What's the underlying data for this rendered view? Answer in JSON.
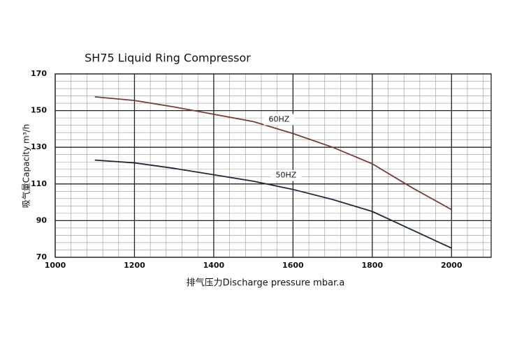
{
  "chart_data": {
    "type": "line",
    "title": "SH75 Liquid Ring Compressor",
    "xlabel": "排气压力Discharge pressure mbar.a",
    "ylabel": "吸气量Capacity m³/h",
    "x": [
      1100,
      1200,
      1300,
      1400,
      1500,
      1600,
      1700,
      1800,
      1900,
      2000
    ],
    "series": [
      {
        "name": "60HZ",
        "color": "#7a3a32",
        "values": [
          157.5,
          155.5,
          152,
          148,
          144,
          137.5,
          130,
          121,
          108,
          96
        ]
      },
      {
        "name": "50HZ",
        "color": "#1c2b3c",
        "values": [
          123,
          121.5,
          118.5,
          115,
          111.5,
          107,
          101.5,
          95,
          85,
          75
        ]
      }
    ],
    "xlim": [
      1000,
      2100
    ],
    "ylim": [
      70,
      170
    ],
    "xticks": [
      1000,
      1200,
      1400,
      1600,
      1800,
      2000
    ],
    "yticks": [
      70,
      90,
      110,
      130,
      150,
      170
    ],
    "grid": true,
    "minor_grid_divisions": 5
  }
}
